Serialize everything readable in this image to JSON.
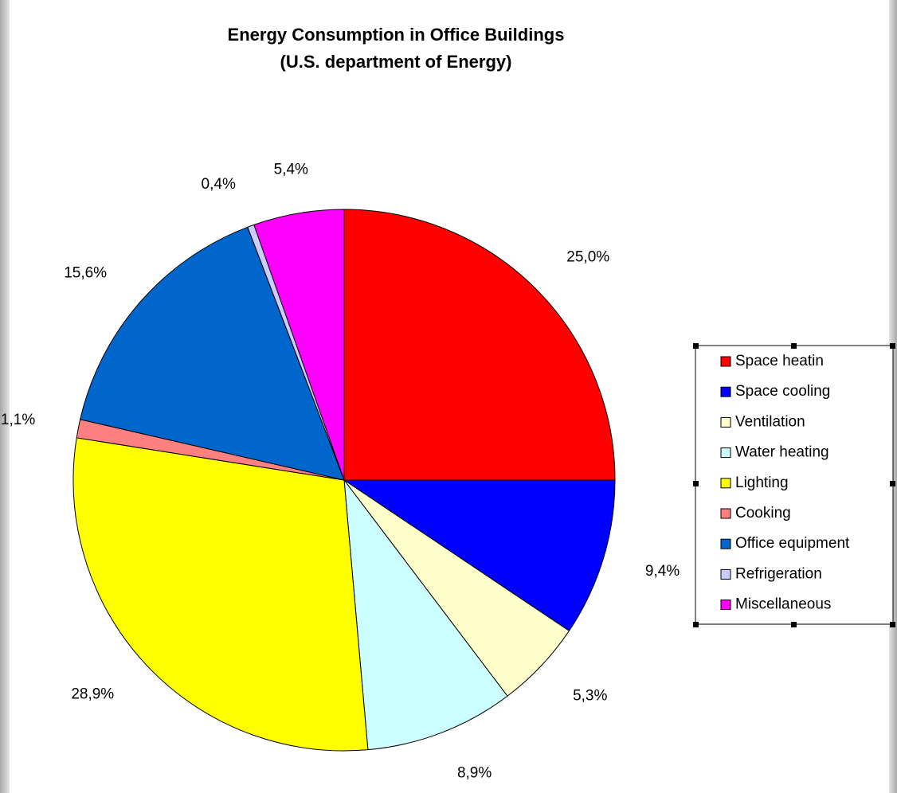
{
  "chart_data": {
    "type": "pie",
    "title": "Energy Consumption in Office Buildings",
    "subtitle": "(U.S. department of Energy)",
    "categories": [
      "Space heatin",
      "Space cooling",
      "Ventilation",
      "Water heating",
      "Lighting",
      "Cooking",
      "Office equipment",
      "Refrigeration",
      "Miscellaneous"
    ],
    "values": [
      25.0,
      9.4,
      5.3,
      8.9,
      28.9,
      1.1,
      15.6,
      0.4,
      5.4
    ],
    "value_labels": [
      "25,0%",
      "9,4%",
      "5,3%",
      "8,9%",
      "28,9%",
      "1,1%",
      "15,6%",
      "0,4%",
      "5,4%"
    ],
    "colors": [
      "#ff0000",
      "#0000ff",
      "#ffffcc",
      "#ccffff",
      "#ffff00",
      "#ff8080",
      "#0066cc",
      "#ccccff",
      "#ff00ff"
    ],
    "legend": "right"
  }
}
